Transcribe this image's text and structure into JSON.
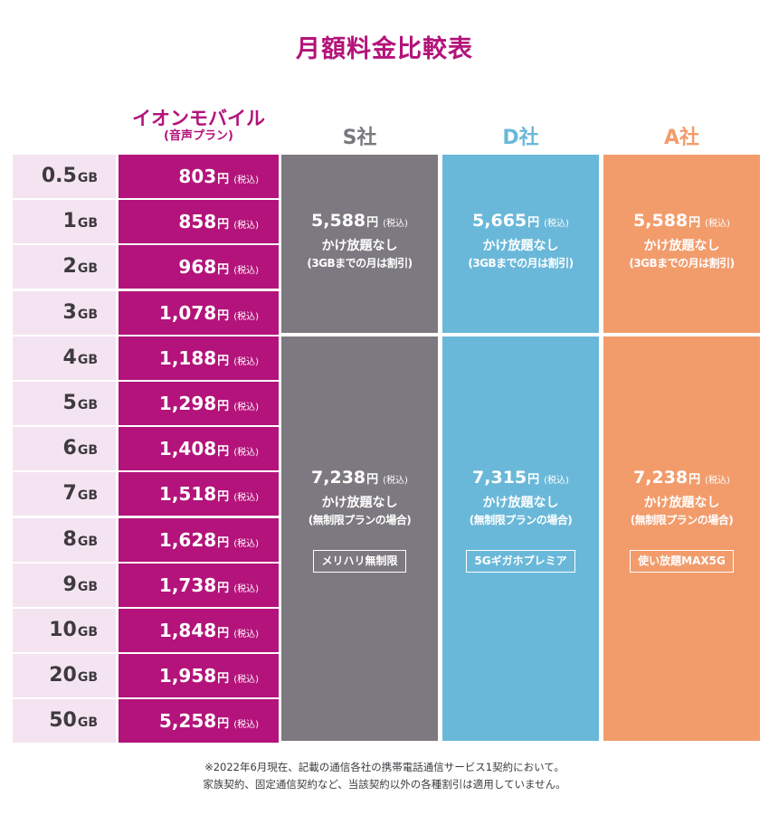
{
  "title": "月額料金比較表",
  "headers": {
    "aeon_name": "イオンモバイル",
    "aeon_sub": "(音声プラン)",
    "s": "S社",
    "d": "D社",
    "a": "A社"
  },
  "rows": [
    {
      "gb": "0.5",
      "unit": "GB",
      "price": "803",
      "yen": "円",
      "tax": "(税込)"
    },
    {
      "gb": "1",
      "unit": "GB",
      "price": "858",
      "yen": "円",
      "tax": "(税込)"
    },
    {
      "gb": "2",
      "unit": "GB",
      "price": "968",
      "yen": "円",
      "tax": "(税込)"
    },
    {
      "gb": "3",
      "unit": "GB",
      "price": "1,078",
      "yen": "円",
      "tax": "(税込)"
    },
    {
      "gb": "4",
      "unit": "GB",
      "price": "1,188",
      "yen": "円",
      "tax": "(税込)"
    },
    {
      "gb": "5",
      "unit": "GB",
      "price": "1,298",
      "yen": "円",
      "tax": "(税込)"
    },
    {
      "gb": "6",
      "unit": "GB",
      "price": "1,408",
      "yen": "円",
      "tax": "(税込)"
    },
    {
      "gb": "7",
      "unit": "GB",
      "price": "1,518",
      "yen": "円",
      "tax": "(税込)"
    },
    {
      "gb": "8",
      "unit": "GB",
      "price": "1,628",
      "yen": "円",
      "tax": "(税込)"
    },
    {
      "gb": "9",
      "unit": "GB",
      "price": "1,738",
      "yen": "円",
      "tax": "(税込)"
    },
    {
      "gb": "10",
      "unit": "GB",
      "price": "1,848",
      "yen": "円",
      "tax": "(税込)"
    },
    {
      "gb": "20",
      "unit": "GB",
      "price": "1,958",
      "yen": "円",
      "tax": "(税込)"
    },
    {
      "gb": "50",
      "unit": "GB",
      "price": "5,258",
      "yen": "円",
      "tax": "(税込)"
    }
  ],
  "competitors": {
    "s": {
      "tier1": {
        "price": "5,588",
        "yen": "円",
        "tax": "(税込)",
        "line1": "かけ放題なし",
        "line2": "(3GBまでの月は割引)"
      },
      "tier2": {
        "price": "7,238",
        "yen": "円",
        "tax": "(税込)",
        "line1": "かけ放題なし",
        "line2": "(無制限プランの場合)",
        "plan": "メリハリ無制限"
      }
    },
    "d": {
      "tier1": {
        "price": "5,665",
        "yen": "円",
        "tax": "(税込)",
        "line1": "かけ放題なし",
        "line2": "(3GBまでの月は割引)"
      },
      "tier2": {
        "price": "7,315",
        "yen": "円",
        "tax": "(税込)",
        "line1": "かけ放題なし",
        "line2": "(無制限プランの場合)",
        "plan": "5Gギガホプレミア"
      }
    },
    "a": {
      "tier1": {
        "price": "5,588",
        "yen": "円",
        "tax": "(税込)",
        "line1": "かけ放題なし",
        "line2": "(3GBまでの月は割引)"
      },
      "tier2": {
        "price": "7,238",
        "yen": "円",
        "tax": "(税込)",
        "line1": "かけ放題なし",
        "line2": "(無制限プランの場合)",
        "plan": "使い放題MAX5G"
      }
    }
  },
  "notes": [
    "※2022年6月現在、記載の通信各社の携帯電話通信サービス1契約において。",
    "家族契約、固定通信契約など、当該契約以外の各種割引は適用していません。"
  ],
  "colors": {
    "brand": "#b3137a",
    "gb_bg": "#f4e4f1",
    "s": "#7d7980",
    "d": "#6ab8d9",
    "a": "#f29c6c"
  }
}
